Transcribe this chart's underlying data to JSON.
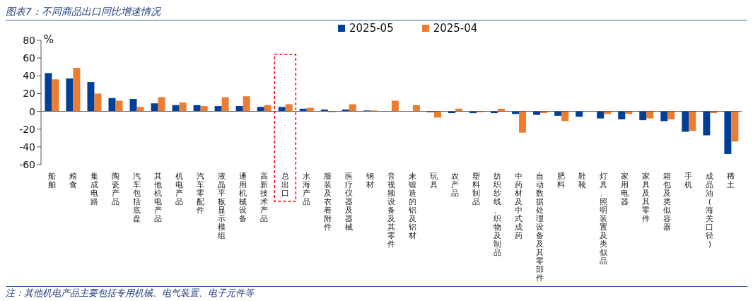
{
  "chart_data": {
    "type": "bar",
    "title": "图表7：不同商品出口同比增速情况",
    "ylabel": "%",
    "categories": [
      "船舶",
      "粮食",
      "集成电路",
      "陶瓷产品",
      "汽车包括底盘",
      "其他机电产品",
      "机电产品",
      "汽车零配件",
      "液晶平板显示模组",
      "通用机械设备",
      "高新技术产品",
      "总出口",
      "水海产品",
      "服装及衣着附件",
      "医疗仪器及器械",
      "钢材",
      "音视频设备及其零件",
      "未锻造的铝及铝材",
      "玩具",
      "农产品",
      "塑料制品",
      "纺织纱线、织物及制品",
      "中药材及中式成药",
      "自动数据处理设备及其零部件",
      "肥料",
      "鞋靴",
      "灯具、照明装置及类似品",
      "家用电器",
      "家具及其零件",
      "箱包及类似容器",
      "手机",
      "成品油(海关口径)",
      "稀土"
    ],
    "series": [
      {
        "name": "2025-05",
        "color": "#003f98",
        "values": [
          43,
          37,
          33,
          15,
          14,
          9,
          7,
          7,
          6,
          6,
          5,
          5,
          3,
          2,
          2,
          1,
          0,
          0,
          -1,
          -2,
          -2,
          -2,
          -3,
          -4,
          -5,
          -6,
          -8,
          -9,
          -10,
          -11,
          -23,
          -27,
          -48
        ]
      },
      {
        "name": "2025-04",
        "color": "#ed7d31",
        "values": [
          36,
          49,
          20,
          12,
          5,
          16,
          10,
          6,
          16,
          17,
          7,
          8,
          4,
          -1,
          8,
          1,
          12,
          7,
          -7,
          3,
          -1,
          3,
          -24,
          -2,
          -11,
          0,
          -3,
          -3,
          -8,
          -9,
          -22,
          -2,
          -34
        ]
      }
    ],
    "ylim": [
      -60,
      80
    ],
    "yticks": [
      -60,
      -40,
      -20,
      0,
      20,
      40,
      60,
      80
    ],
    "legend": "top",
    "annotations": [
      "注：其他机电产品主要包括专用机械、电气装置、电子元件等"
    ]
  }
}
